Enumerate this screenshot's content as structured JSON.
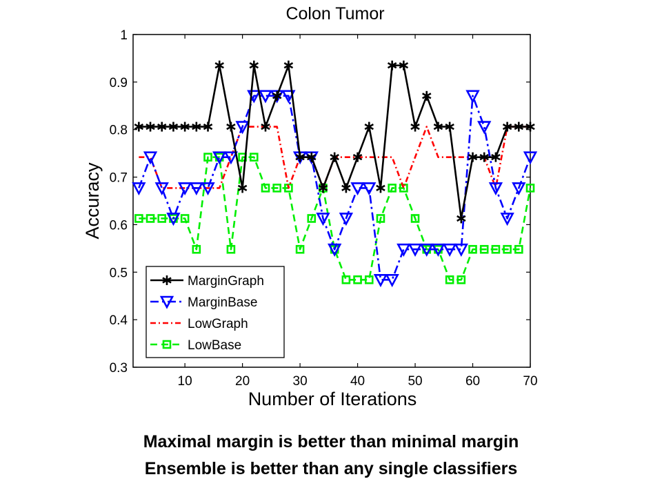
{
  "chart_data": {
    "type": "line",
    "title": "Colon Tumor",
    "xlabel": "Number of Iterations",
    "ylabel": "Accuracy",
    "xlim": [
      1,
      70
    ],
    "ylim": [
      0.3,
      1
    ],
    "xticks": [
      10,
      20,
      30,
      40,
      50,
      60,
      70
    ],
    "yticks": [
      0.3,
      0.4,
      0.5,
      0.6,
      0.7,
      0.8,
      0.9,
      1
    ],
    "grid": false,
    "legend_position": "bottom-left",
    "x": [
      2,
      4,
      6,
      8,
      10,
      12,
      14,
      16,
      18,
      20,
      22,
      24,
      26,
      28,
      30,
      32,
      34,
      36,
      38,
      40,
      42,
      44,
      46,
      48,
      50,
      52,
      54,
      56,
      58,
      60,
      62,
      64,
      66,
      68,
      70
    ],
    "series": [
      {
        "name": "MarginGraph",
        "color": "#000000",
        "dash": "solid",
        "marker": "star",
        "values": [
          0.806,
          0.806,
          0.806,
          0.806,
          0.806,
          0.806,
          0.806,
          0.935,
          0.806,
          0.677,
          0.935,
          0.806,
          0.871,
          0.935,
          0.742,
          0.742,
          0.677,
          0.742,
          0.677,
          0.742,
          0.806,
          0.677,
          0.935,
          0.935,
          0.806,
          0.871,
          0.806,
          0.806,
          0.613,
          0.742,
          0.742,
          0.742,
          0.806,
          0.806,
          0.806
        ]
      },
      {
        "name": "MarginBase",
        "color": "#0000ff",
        "dash": "dashdot",
        "marker": "triangle-down",
        "values": [
          0.677,
          0.742,
          0.677,
          0.613,
          0.677,
          0.677,
          0.677,
          0.742,
          0.742,
          0.806,
          0.871,
          0.871,
          0.871,
          0.871,
          0.742,
          0.742,
          0.613,
          0.548,
          0.613,
          0.677,
          0.677,
          0.484,
          0.484,
          0.548,
          0.548,
          0.548,
          0.548,
          0.548,
          0.548,
          0.871,
          0.806,
          0.677,
          0.613,
          0.677,
          0.742
        ]
      },
      {
        "name": "LowGraph",
        "color": "#ff0000",
        "dash": "dashdotsmall",
        "marker": "none",
        "values": [
          0.742,
          0.742,
          0.677,
          0.677,
          0.677,
          0.677,
          0.677,
          0.677,
          0.742,
          0.806,
          0.806,
          0.806,
          0.806,
          0.677,
          0.742,
          0.742,
          0.677,
          0.742,
          0.742,
          0.742,
          0.742,
          0.742,
          0.742,
          0.677,
          0.742,
          0.806,
          0.742,
          0.742,
          0.742,
          0.742,
          0.742,
          0.677,
          0.806,
          0.806,
          0.806
        ]
      },
      {
        "name": "LowBase",
        "color": "#00ee00",
        "dash": "dashed",
        "marker": "square",
        "values": [
          0.613,
          0.613,
          0.613,
          0.613,
          0.613,
          0.548,
          0.742,
          0.742,
          0.548,
          0.742,
          0.742,
          0.677,
          0.677,
          0.677,
          0.548,
          0.613,
          0.677,
          0.548,
          0.484,
          0.484,
          0.484,
          0.613,
          0.677,
          0.677,
          0.613,
          0.548,
          0.548,
          0.484,
          0.484,
          0.548,
          0.548,
          0.548,
          0.548,
          0.548,
          0.677
        ]
      }
    ]
  },
  "caption": {
    "line1": "Maximal margin is better than minimal margin",
    "line2": "Ensemble is better than any single classifiers"
  }
}
